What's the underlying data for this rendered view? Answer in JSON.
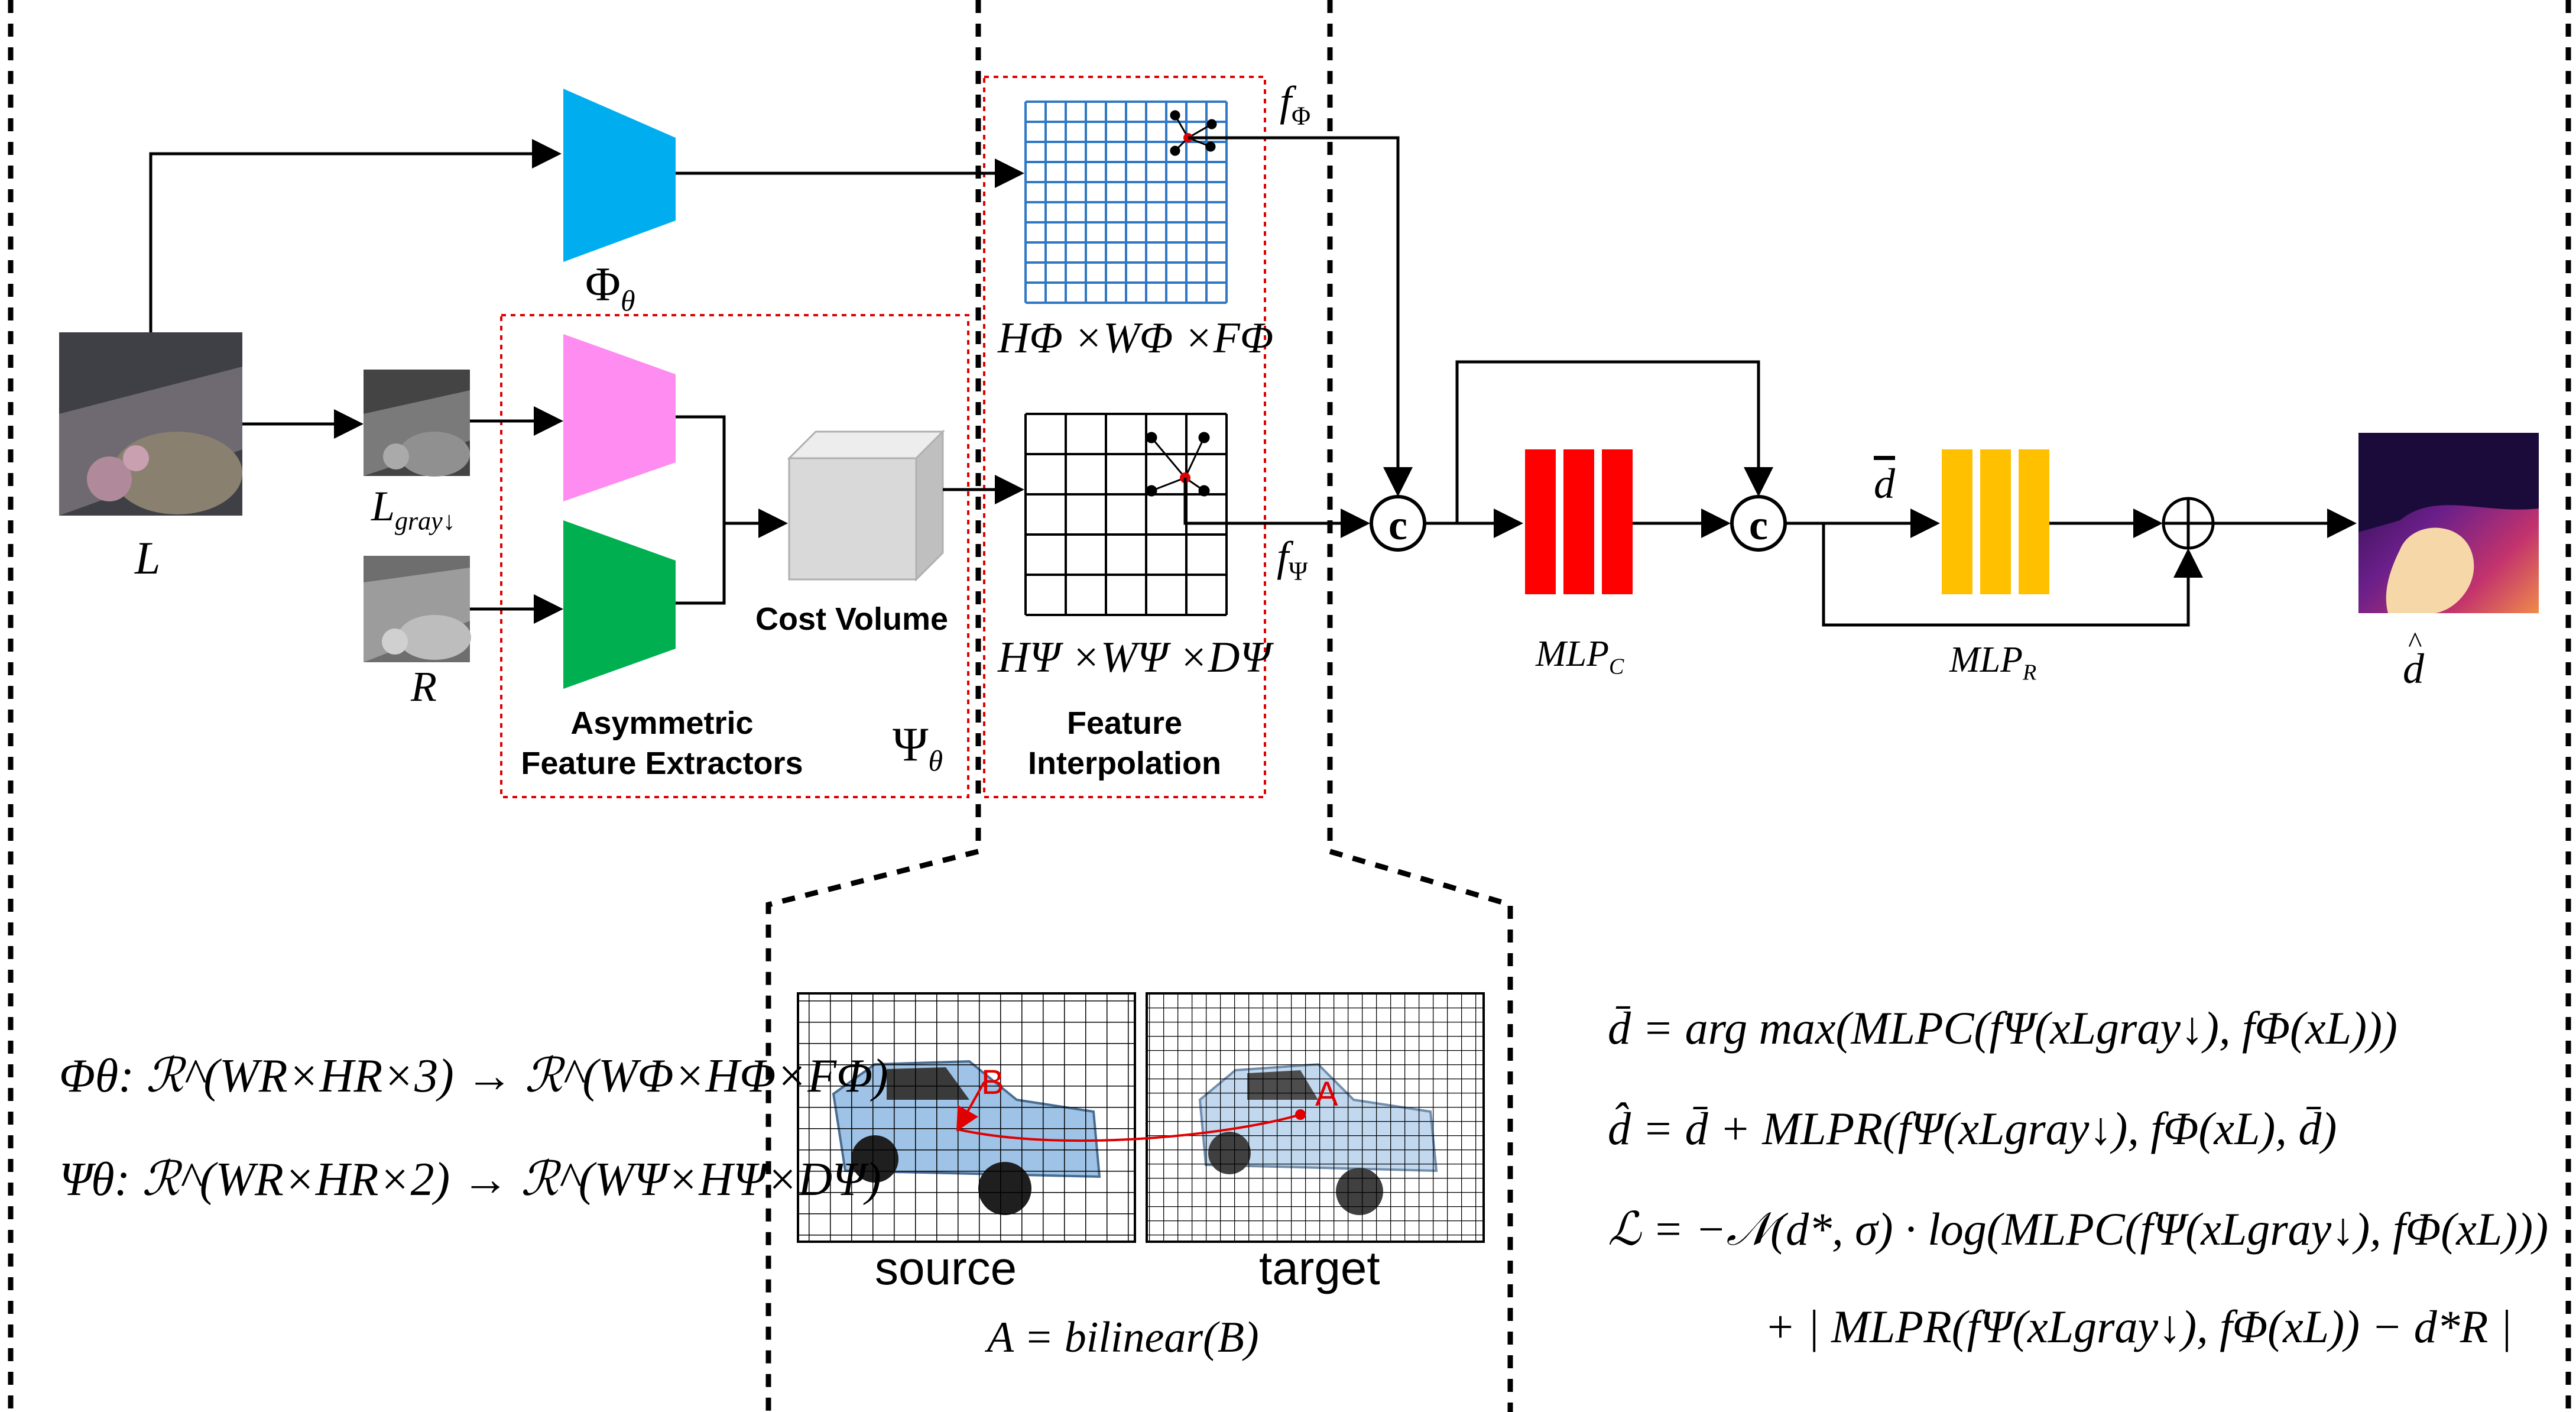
{
  "labels": {
    "phi_net": "Φ",
    "phi_net_sub": "θ",
    "psi_net": "Ψ",
    "psi_net_sub": "θ",
    "input_left": "L",
    "input_left_gray": "L",
    "input_left_gray_sub": "gray↓",
    "input_right": "R",
    "feature_extractors_line1": "Asymmetric",
    "feature_extractors_line2": "Feature Extractors",
    "cost_volume": "Cost Volume",
    "feature_interp_line1": "Feature",
    "feature_interp_line2": "Interpolation",
    "grid_phi_dims": "HΦ ×WΦ ×FΦ",
    "grid_psi_dims": "HΨ ×WΨ ×DΨ",
    "f_phi": "f",
    "f_phi_sub": "Φ",
    "f_psi": "f",
    "f_psi_sub": "Ψ",
    "concat_symbol": "c",
    "mlp_c": "MLP",
    "mlp_c_sub": "C",
    "mlp_r": "MLP",
    "mlp_r_sub": "R",
    "d_bar": "d",
    "d_hat": "d",
    "source": "source",
    "target": "target",
    "bilinear_eq": "A = bilinear(B)",
    "point_a": "A",
    "point_b": "B"
  },
  "left_equations": {
    "phi_line": "Φθ:  ℛ^(WR×HR×3) → ℛ^(WΦ×HΦ×FΦ)",
    "psi_line": "Ψθ:  ℛ^(WR×HR×2) → ℛ^(WΨ×HΨ×DΨ)"
  },
  "right_equations": {
    "eq1": "d̄ = arg max(MLPC(fΨ(xLgray↓), fΦ(xL)))",
    "eq2": "d̂ = d̄ + MLPR(fΨ(xLgray↓), fΦ(xL), d̄)",
    "eq3": "ℒ = −𝒩(d*, σ) · log(MLPC(fΨ(xLgray↓), fΦ(xL)))",
    "eq4": "+ | MLPR(fΨ(xLgray↓), fΦ(xL)) − d*R |"
  },
  "colors": {
    "phi_encoder": "#00aeef",
    "psi_encoder_left": "#ff8cf0",
    "psi_encoder_right": "#00b050",
    "mlp_c": "#ff0000",
    "mlp_r": "#ffc000",
    "grid_phi": "#2f78c4",
    "dotted_box": "#ff0000",
    "cost_volume": "#d9d9d9"
  },
  "icons": [
    "concat-circle-icon",
    "plus-circle-icon",
    "arrow-icon"
  ]
}
